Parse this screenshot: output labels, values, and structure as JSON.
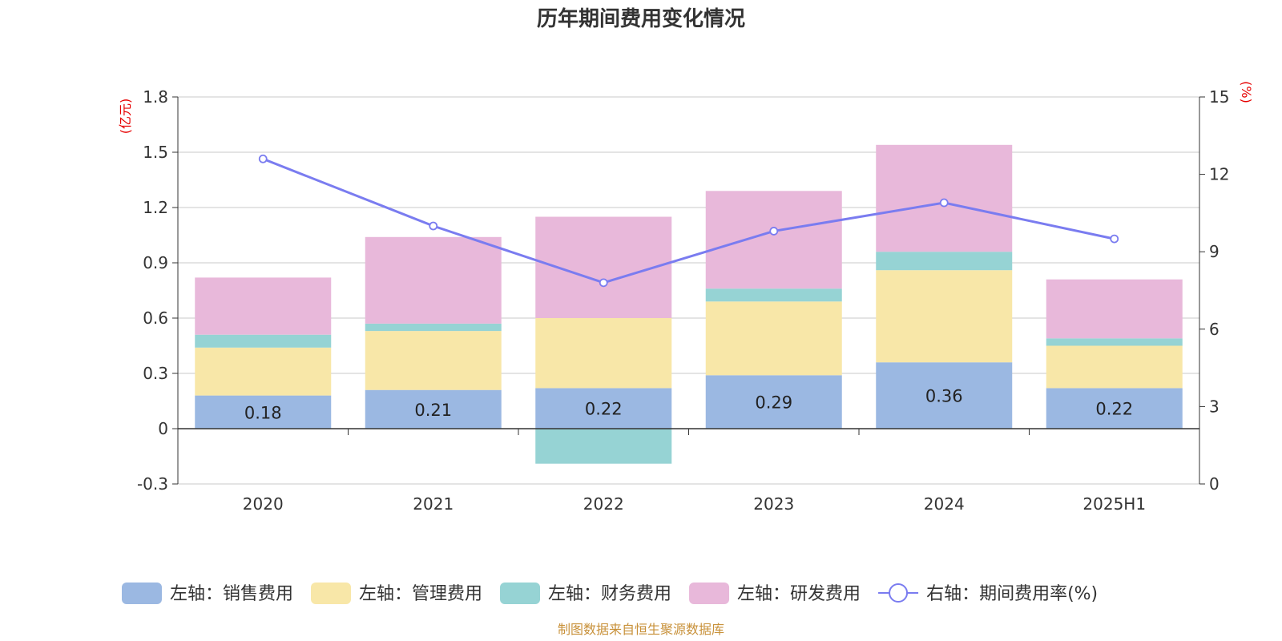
{
  "chart_data": {
    "type": "bar",
    "stacked": true,
    "title": "历年期间费用变化情况",
    "left_unit": "(亿元)",
    "right_unit": "(%)",
    "categories": [
      "2020",
      "2021",
      "2022",
      "2023",
      "2024",
      "2025H1"
    ],
    "y_left": {
      "min": -0.3,
      "max": 1.8,
      "ticks": [
        "-0.3",
        "0",
        "0.3",
        "0.6",
        "0.9",
        "1.2",
        "1.5",
        "1.8"
      ]
    },
    "y_right": {
      "min": 0,
      "max": 15,
      "ticks": [
        "0",
        "3",
        "6",
        "9",
        "12",
        "15"
      ]
    },
    "grid": true,
    "legend_position": "bottom",
    "series": [
      {
        "name": "左轴：销售费用",
        "axis": "left",
        "color": "#9bb8e2",
        "values": [
          0.18,
          0.21,
          0.22,
          0.29,
          0.36,
          0.22
        ],
        "labels": [
          "0.18",
          "0.21",
          "0.22",
          "0.29",
          "0.36",
          "0.22"
        ]
      },
      {
        "name": "左轴：管理费用",
        "axis": "left",
        "color": "#f8e7a8",
        "values": [
          0.26,
          0.32,
          0.38,
          0.4,
          0.5,
          0.23
        ]
      },
      {
        "name": "左轴：财务费用",
        "axis": "left",
        "color": "#96d3d4",
        "values": [
          0.07,
          0.04,
          -0.19,
          0.07,
          0.1,
          0.04
        ]
      },
      {
        "name": "左轴：研发费用",
        "axis": "left",
        "color": "#e8b8da",
        "values": [
          0.31,
          0.47,
          0.55,
          0.53,
          0.58,
          0.32
        ]
      },
      {
        "name": "右轴：期间费用率(%)",
        "axis": "right",
        "type": "line",
        "color": "#7a7cf0",
        "values": [
          12.6,
          10.0,
          7.8,
          9.8,
          10.9,
          9.5
        ]
      }
    ],
    "source": "制图数据来自恒生聚源数据库"
  }
}
